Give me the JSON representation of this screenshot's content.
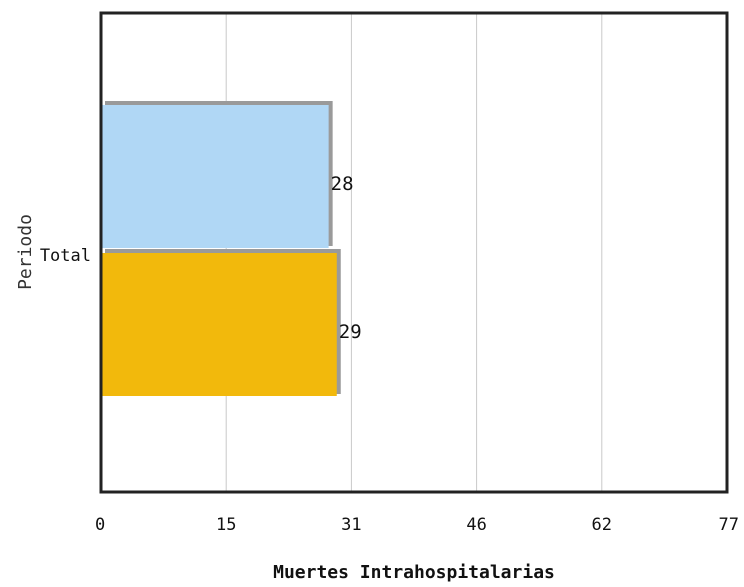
{
  "chart_data": {
    "type": "bar",
    "orientation": "horizontal",
    "categories": [
      "Total"
    ],
    "series": [
      {
        "values": [
          28
        ],
        "color": "#b0d7f5"
      },
      {
        "values": [
          29
        ],
        "color": "#f2b90c"
      }
    ],
    "data_labels": [
      "28",
      "29"
    ],
    "xlabel": "Muertes Intrahospitalarias",
    "ylabel": "Periodo",
    "xlim": [
      0,
      77
    ],
    "xticks": [
      "0",
      "15",
      "31",
      "46",
      "62",
      "77"
    ],
    "grid": "vertical"
  }
}
